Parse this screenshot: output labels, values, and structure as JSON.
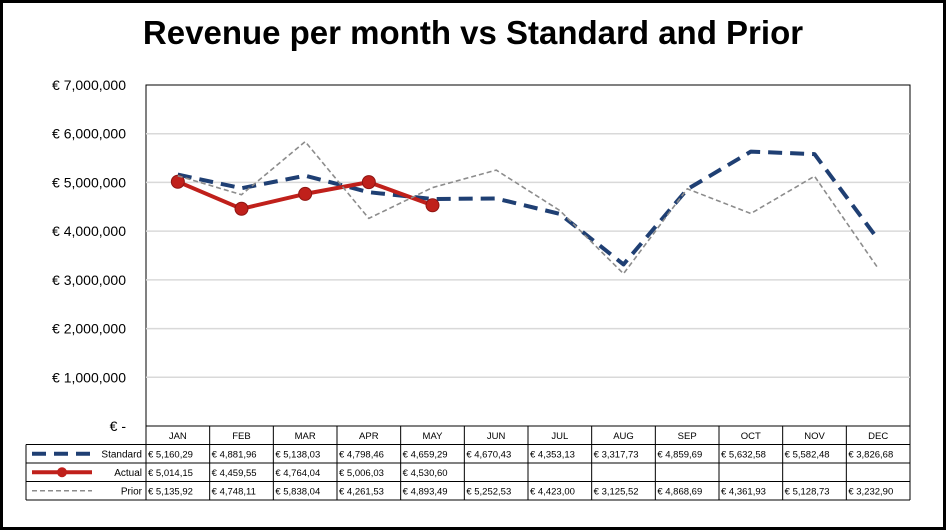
{
  "chart_data": {
    "type": "line",
    "title": "Revenue per month vs Standard and Prior",
    "categories": [
      "JAN",
      "FEB",
      "MAR",
      "APR",
      "MAY",
      "JUN",
      "JUL",
      "AUG",
      "SEP",
      "OCT",
      "NOV",
      "DEC"
    ],
    "yticks": [
      "€ -",
      "€ 1,000,000",
      "€ 2,000,000",
      "€ 3,000,000",
      "€ 4,000,000",
      "€ 5,000,000",
      "€ 6,000,000",
      "€ 7,000,000"
    ],
    "ylim": [
      0,
      7000000
    ],
    "grid": true,
    "legend_placement": "data-table",
    "series": [
      {
        "name": "Standard",
        "style": "dashed",
        "color": "#1F3F73",
        "values": [
          5160290,
          4881960,
          5138030,
          4798460,
          4659290,
          4670430,
          4353130,
          3317730,
          4859690,
          5632580,
          5582480,
          3826680
        ],
        "labels": [
          "€ 5,160,29",
          "€ 4,881,96",
          "€ 5,138,03",
          "€ 4,798,46",
          "€ 4,659,29",
          "€ 4,670,43",
          "€ 4,353,13",
          "€ 3,317,73",
          "€ 4,859,69",
          "€ 5,632,58",
          "€ 5,582,48",
          "€ 3,826,68"
        ]
      },
      {
        "name": "Actual",
        "style": "solid-markers",
        "color": "#C0201B",
        "values": [
          5014150,
          4459550,
          4764040,
          5006030,
          4530600,
          null,
          null,
          null,
          null,
          null,
          null,
          null
        ],
        "labels": [
          "€ 5,014,15",
          "€ 4,459,55",
          "€ 4,764,04",
          "€ 5,006,03",
          "€ 4,530,60",
          "",
          "",
          "",
          "",
          "",
          "",
          ""
        ]
      },
      {
        "name": "Prior",
        "style": "dashed-thin",
        "color": "#8C8C8C",
        "values": [
          5135920,
          4748110,
          5838040,
          4261530,
          4893490,
          5252530,
          4423000,
          3125520,
          4868690,
          4361930,
          5128730,
          3232900
        ],
        "labels": [
          "€ 5,135,92",
          "€ 4,748,11",
          "€ 5,838,04",
          "€ 4,261,53",
          "€ 4,893,49",
          "€ 5,252,53",
          "€ 4,423,00",
          "€ 3,125,52",
          "€ 4,868,69",
          "€ 4,361,93",
          "€ 5,128,73",
          "€ 3,232,90"
        ]
      }
    ]
  }
}
